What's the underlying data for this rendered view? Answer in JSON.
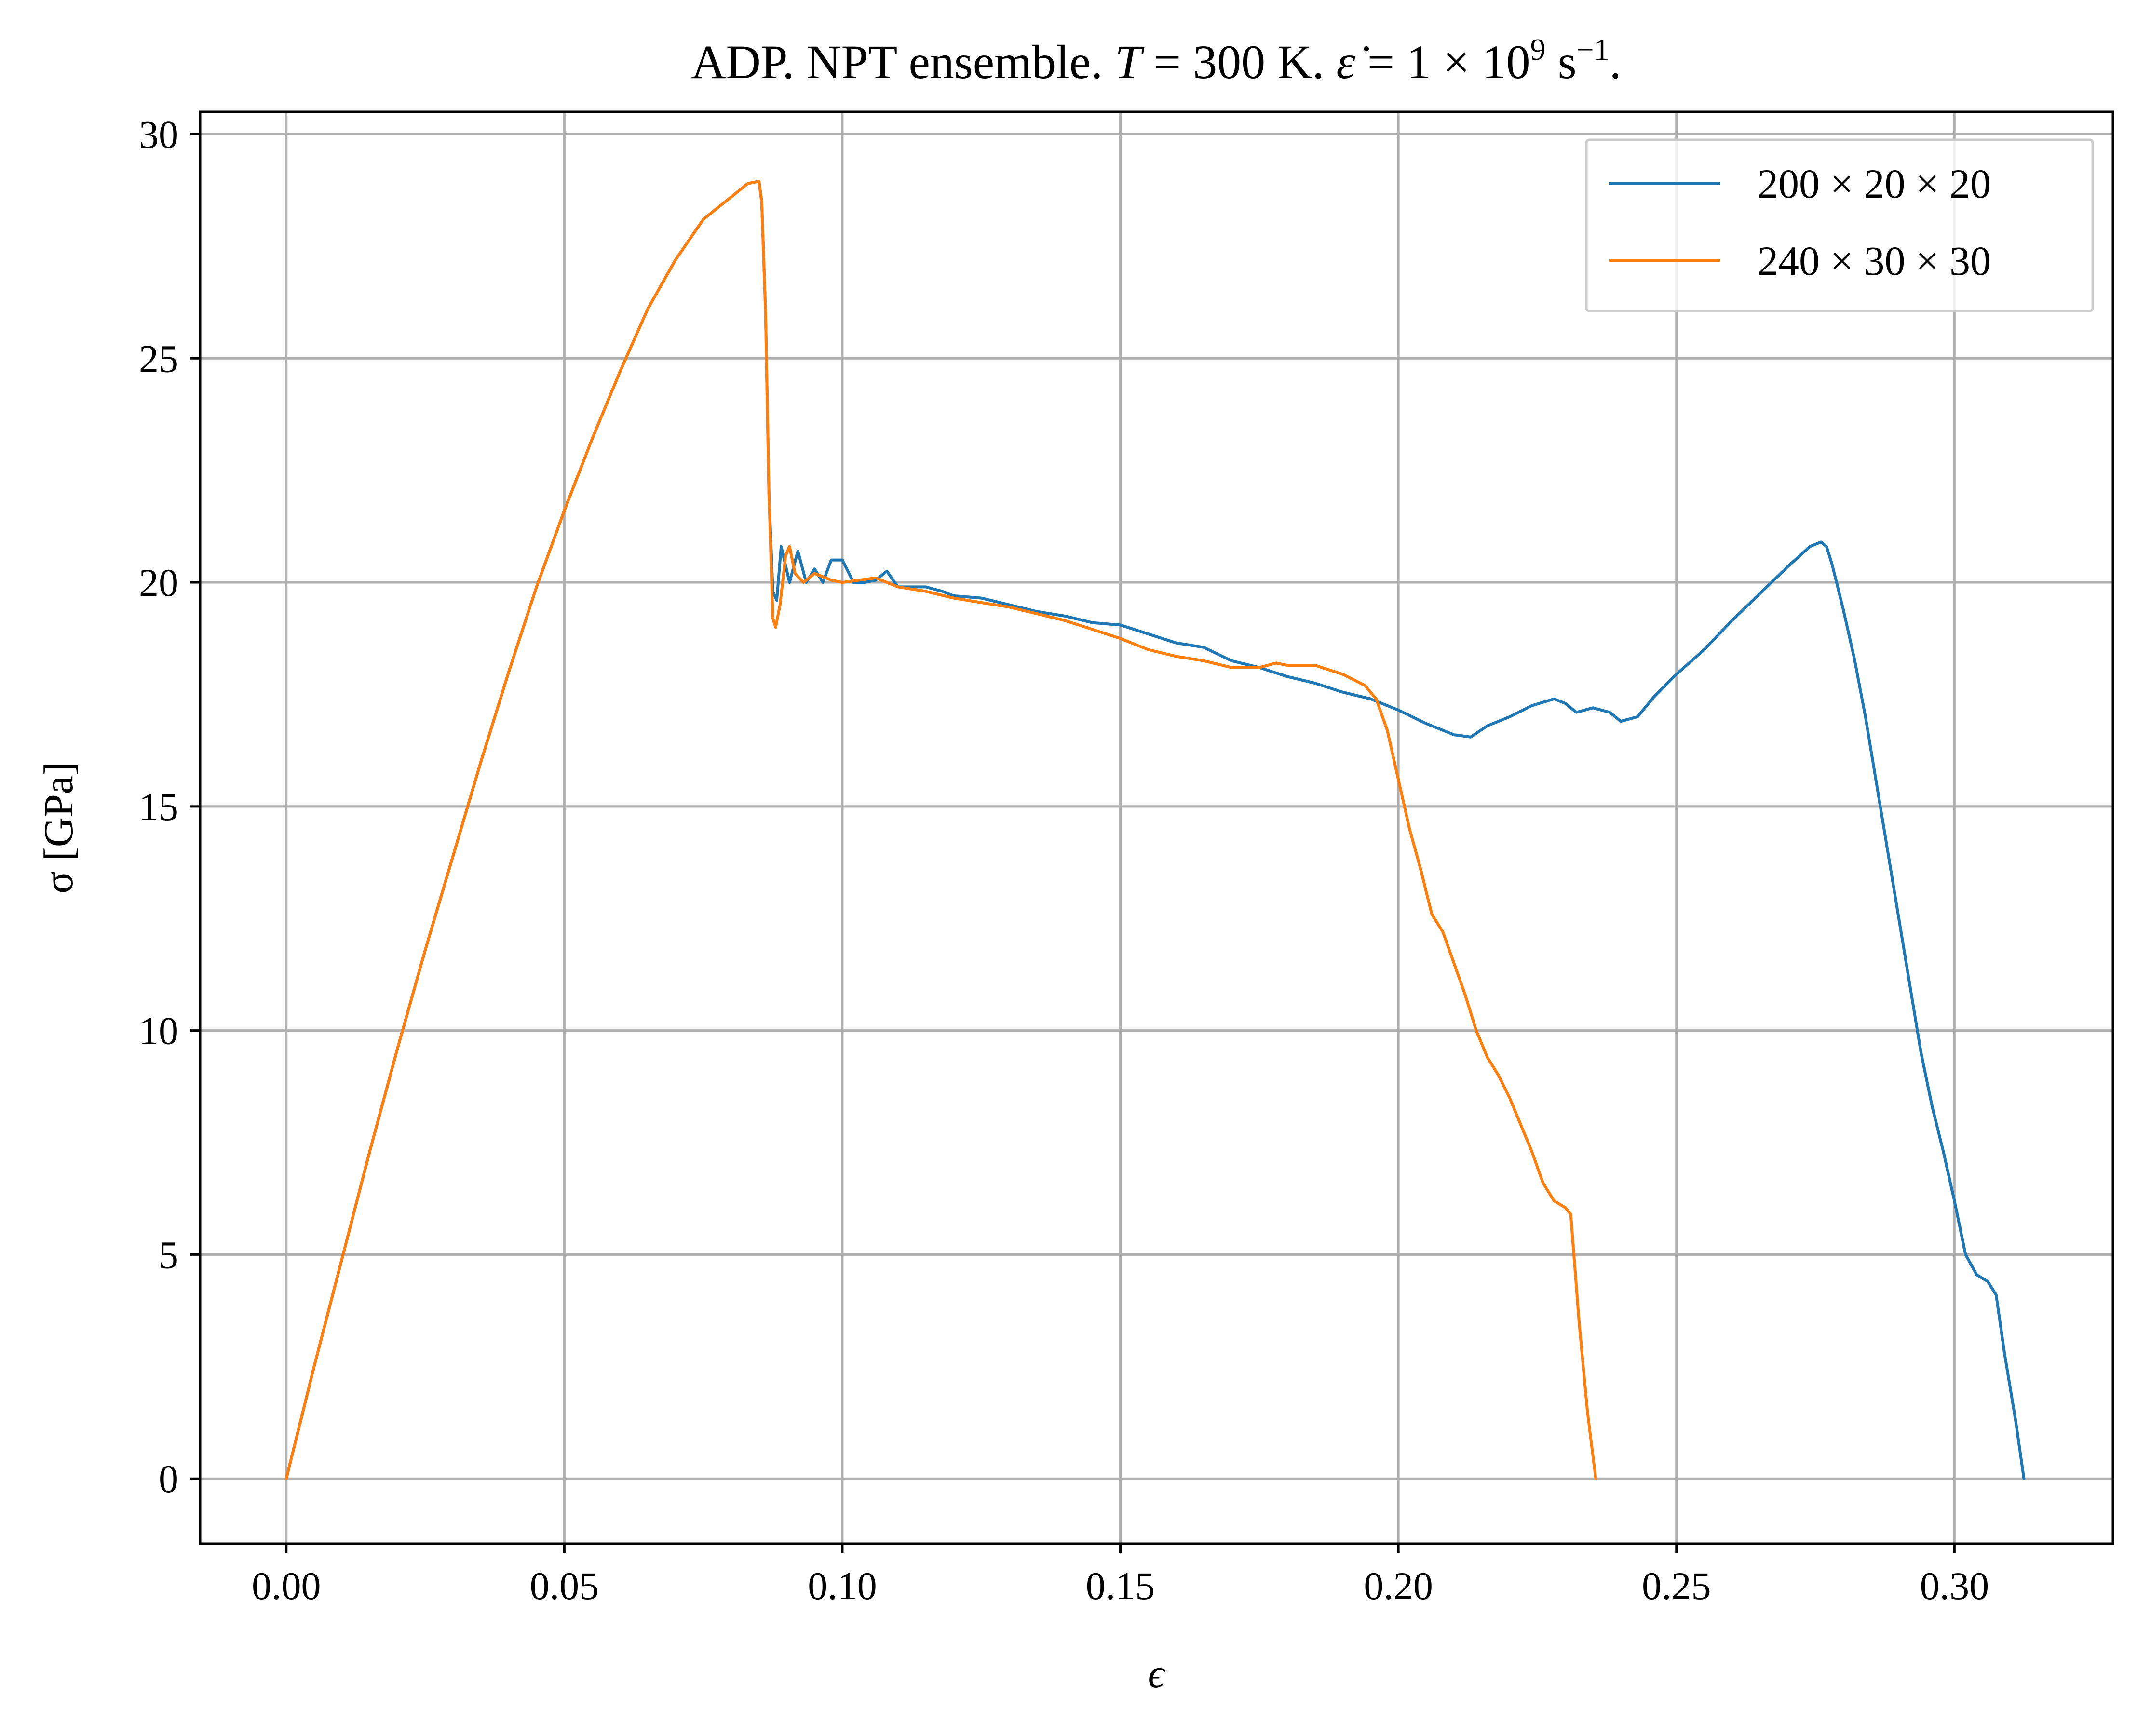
{
  "chart_data": {
    "type": "line",
    "title": {
      "prefix": "ADP. NPT ensemble. ",
      "T_symbol": "T",
      "T_value": " = 300 K. ",
      "rate_symbol": "ε̇",
      "rate_value": " = 1 × 10",
      "rate_exponent": "9",
      "rate_unit": " s",
      "rate_unit_exponent": "−1",
      "suffix": "."
    },
    "xlabel": "ϵ",
    "ylabel": "σ [GPa]",
    "xlim": [
      -0.0155,
      0.3285
    ],
    "ylim": [
      -1.45,
      30.5
    ],
    "xticks": [
      "0.00",
      "0.05",
      "0.10",
      "0.15",
      "0.20",
      "0.25",
      "0.30"
    ],
    "yticks": [
      "0",
      "5",
      "10",
      "15",
      "20",
      "25",
      "30"
    ],
    "grid": true,
    "legend_position": "top-right",
    "series": [
      {
        "name": "200 × 20 × 20",
        "color": "#1f77b4",
        "points": [
          [
            0.0,
            0.0
          ],
          [
            0.005,
            2.5
          ],
          [
            0.01,
            4.9
          ],
          [
            0.015,
            7.3
          ],
          [
            0.02,
            9.6
          ],
          [
            0.025,
            11.8
          ],
          [
            0.03,
            13.9
          ],
          [
            0.035,
            16.0
          ],
          [
            0.04,
            18.0
          ],
          [
            0.045,
            19.9
          ],
          [
            0.05,
            21.6
          ],
          [
            0.055,
            23.2
          ],
          [
            0.06,
            24.7
          ],
          [
            0.065,
            26.1
          ],
          [
            0.07,
            27.2
          ],
          [
            0.075,
            28.1
          ],
          [
            0.08,
            28.6
          ],
          [
            0.083,
            28.9
          ],
          [
            0.085,
            28.95
          ],
          [
            0.0855,
            28.5
          ],
          [
            0.0862,
            26.0
          ],
          [
            0.0868,
            22.0
          ],
          [
            0.0875,
            19.8
          ],
          [
            0.0882,
            19.6
          ],
          [
            0.089,
            20.8
          ],
          [
            0.0905,
            20.0
          ],
          [
            0.092,
            20.7
          ],
          [
            0.0935,
            20.0
          ],
          [
            0.095,
            20.3
          ],
          [
            0.0965,
            20.0
          ],
          [
            0.098,
            20.5
          ],
          [
            0.1,
            20.5
          ],
          [
            0.102,
            20.0
          ],
          [
            0.104,
            20.0
          ],
          [
            0.106,
            20.05
          ],
          [
            0.108,
            20.25
          ],
          [
            0.11,
            19.9
          ],
          [
            0.112,
            19.9
          ],
          [
            0.115,
            19.9
          ],
          [
            0.118,
            19.8
          ],
          [
            0.12,
            19.7
          ],
          [
            0.125,
            19.65
          ],
          [
            0.13,
            19.5
          ],
          [
            0.135,
            19.35
          ],
          [
            0.14,
            19.25
          ],
          [
            0.145,
            19.1
          ],
          [
            0.15,
            19.05
          ],
          [
            0.155,
            18.85
          ],
          [
            0.16,
            18.65
          ],
          [
            0.165,
            18.55
          ],
          [
            0.17,
            18.25
          ],
          [
            0.175,
            18.1
          ],
          [
            0.18,
            17.9
          ],
          [
            0.185,
            17.75
          ],
          [
            0.19,
            17.55
          ],
          [
            0.195,
            17.4
          ],
          [
            0.2,
            17.15
          ],
          [
            0.205,
            16.85
          ],
          [
            0.21,
            16.6
          ],
          [
            0.213,
            16.55
          ],
          [
            0.216,
            16.8
          ],
          [
            0.22,
            17.0
          ],
          [
            0.224,
            17.25
          ],
          [
            0.228,
            17.4
          ],
          [
            0.23,
            17.3
          ],
          [
            0.232,
            17.1
          ],
          [
            0.235,
            17.2
          ],
          [
            0.238,
            17.1
          ],
          [
            0.24,
            16.9
          ],
          [
            0.243,
            17.0
          ],
          [
            0.246,
            17.45
          ],
          [
            0.25,
            17.95
          ],
          [
            0.255,
            18.5
          ],
          [
            0.26,
            19.15
          ],
          [
            0.265,
            19.75
          ],
          [
            0.27,
            20.35
          ],
          [
            0.274,
            20.8
          ],
          [
            0.276,
            20.9
          ],
          [
            0.277,
            20.8
          ],
          [
            0.278,
            20.4
          ],
          [
            0.28,
            19.4
          ],
          [
            0.282,
            18.3
          ],
          [
            0.284,
            17.0
          ],
          [
            0.286,
            15.5
          ],
          [
            0.288,
            14.0
          ],
          [
            0.29,
            12.5
          ],
          [
            0.292,
            11.0
          ],
          [
            0.294,
            9.5
          ],
          [
            0.296,
            8.3
          ],
          [
            0.298,
            7.3
          ],
          [
            0.3,
            6.2
          ],
          [
            0.302,
            5.0
          ],
          [
            0.304,
            4.55
          ],
          [
            0.306,
            4.4
          ],
          [
            0.3075,
            4.1
          ],
          [
            0.309,
            2.8
          ],
          [
            0.311,
            1.3
          ],
          [
            0.3125,
            0.0
          ]
        ]
      },
      {
        "name": "240 × 30 × 30",
        "color": "#ff7f0e",
        "points": [
          [
            0.0,
            0.0
          ],
          [
            0.005,
            2.5
          ],
          [
            0.01,
            4.9
          ],
          [
            0.015,
            7.3
          ],
          [
            0.02,
            9.6
          ],
          [
            0.025,
            11.8
          ],
          [
            0.03,
            13.9
          ],
          [
            0.035,
            16.0
          ],
          [
            0.04,
            18.0
          ],
          [
            0.045,
            19.9
          ],
          [
            0.05,
            21.6
          ],
          [
            0.055,
            23.2
          ],
          [
            0.06,
            24.7
          ],
          [
            0.065,
            26.1
          ],
          [
            0.07,
            27.2
          ],
          [
            0.075,
            28.1
          ],
          [
            0.08,
            28.6
          ],
          [
            0.083,
            28.9
          ],
          [
            0.085,
            28.95
          ],
          [
            0.0855,
            28.5
          ],
          [
            0.0862,
            26.0
          ],
          [
            0.0868,
            22.0
          ],
          [
            0.0875,
            19.2
          ],
          [
            0.088,
            19.0
          ],
          [
            0.0888,
            19.5
          ],
          [
            0.0898,
            20.6
          ],
          [
            0.0905,
            20.8
          ],
          [
            0.0915,
            20.2
          ],
          [
            0.093,
            20.0
          ],
          [
            0.095,
            20.2
          ],
          [
            0.098,
            20.05
          ],
          [
            0.1,
            20.0
          ],
          [
            0.103,
            20.05
          ],
          [
            0.106,
            20.1
          ],
          [
            0.11,
            19.9
          ],
          [
            0.115,
            19.8
          ],
          [
            0.12,
            19.65
          ],
          [
            0.125,
            19.55
          ],
          [
            0.13,
            19.45
          ],
          [
            0.135,
            19.3
          ],
          [
            0.14,
            19.15
          ],
          [
            0.145,
            18.95
          ],
          [
            0.15,
            18.75
          ],
          [
            0.155,
            18.5
          ],
          [
            0.16,
            18.35
          ],
          [
            0.165,
            18.25
          ],
          [
            0.17,
            18.1
          ],
          [
            0.175,
            18.1
          ],
          [
            0.178,
            18.2
          ],
          [
            0.18,
            18.15
          ],
          [
            0.185,
            18.15
          ],
          [
            0.19,
            17.95
          ],
          [
            0.194,
            17.7
          ],
          [
            0.196,
            17.4
          ],
          [
            0.198,
            16.7
          ],
          [
            0.2,
            15.6
          ],
          [
            0.202,
            14.5
          ],
          [
            0.204,
            13.6
          ],
          [
            0.206,
            12.6
          ],
          [
            0.208,
            12.2
          ],
          [
            0.21,
            11.5
          ],
          [
            0.212,
            10.8
          ],
          [
            0.214,
            10.0
          ],
          [
            0.216,
            9.4
          ],
          [
            0.218,
            9.0
          ],
          [
            0.22,
            8.5
          ],
          [
            0.222,
            7.9
          ],
          [
            0.224,
            7.3
          ],
          [
            0.226,
            6.6
          ],
          [
            0.228,
            6.2
          ],
          [
            0.23,
            6.05
          ],
          [
            0.231,
            5.9
          ],
          [
            0.2325,
            3.5
          ],
          [
            0.234,
            1.5
          ],
          [
            0.2355,
            0.0
          ]
        ]
      }
    ]
  }
}
